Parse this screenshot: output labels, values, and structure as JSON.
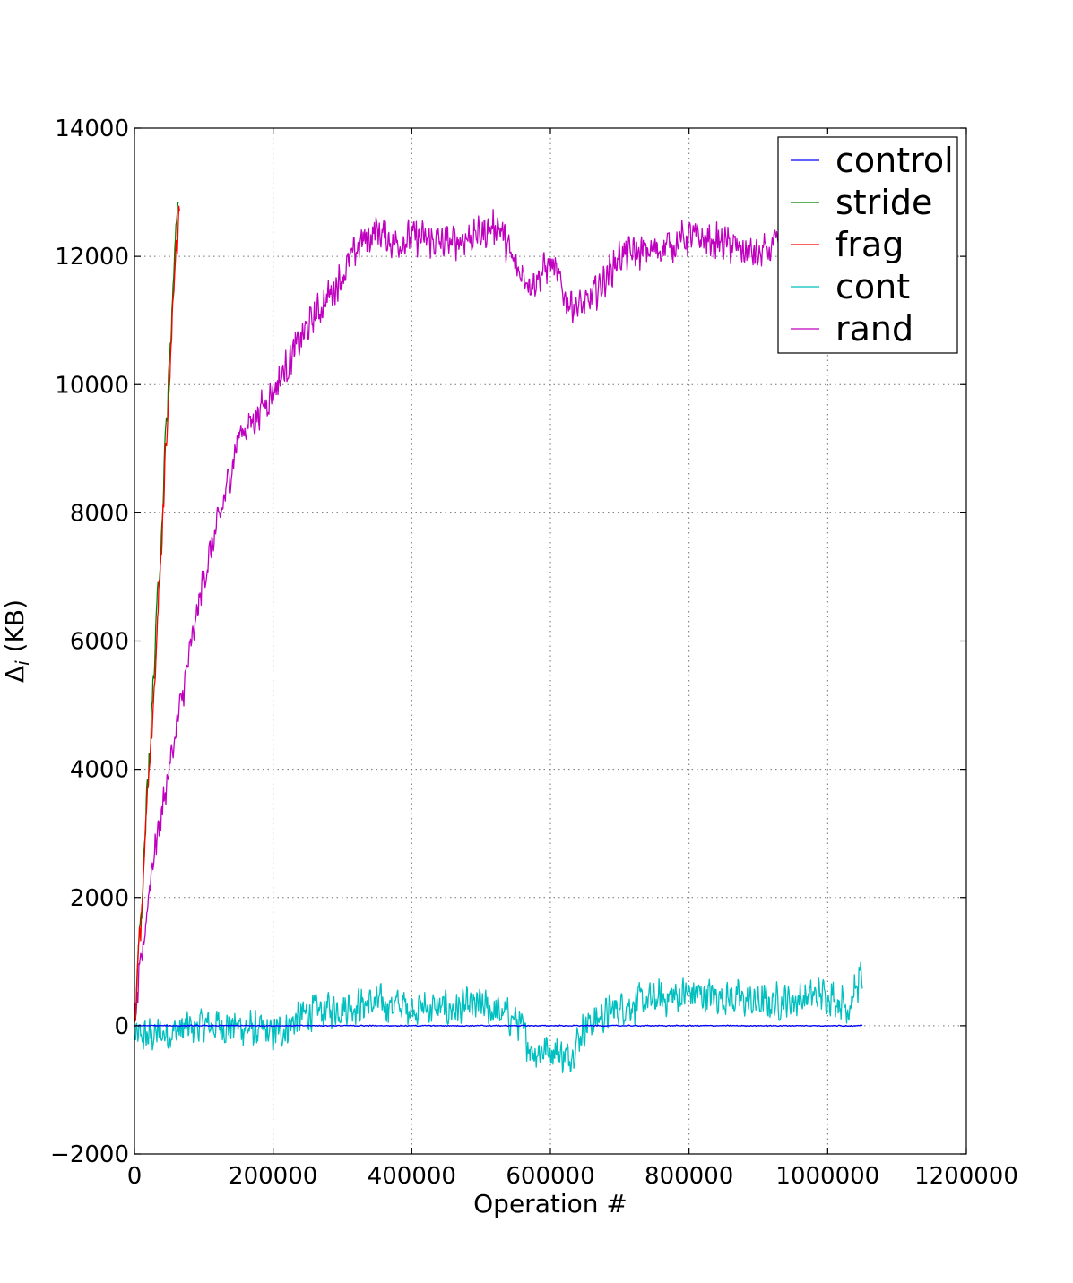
{
  "chart_data": {
    "type": "line",
    "title": "",
    "xlabel": "Operation #",
    "ylabel_base": "Δ",
    "ylabel_sub": "i",
    "ylabel_suffix": " (KB)",
    "xlim": [
      0,
      1200000
    ],
    "ylim": [
      -2000,
      14000
    ],
    "xticks": [
      0,
      200000,
      400000,
      600000,
      800000,
      1000000,
      1200000
    ],
    "xtick_labels": [
      "0",
      "200000",
      "400000",
      "600000",
      "800000",
      "1000000",
      "1200000"
    ],
    "yticks": [
      -2000,
      0,
      2000,
      4000,
      6000,
      8000,
      10000,
      12000,
      14000
    ],
    "ytick_labels": [
      "−2000",
      "0",
      "2000",
      "4000",
      "6000",
      "8000",
      "10000",
      "12000",
      "14000"
    ],
    "grid": true,
    "legend_position": "top-right",
    "series": [
      {
        "name": "control",
        "color": "#0000ff",
        "noise": 10,
        "x": [
          0,
          1050000
        ],
        "y": [
          0,
          0
        ]
      },
      {
        "name": "stride",
        "color": "#008000",
        "noise": 350,
        "x": [
          0,
          10000,
          20000,
          30000,
          40000,
          50000,
          60000,
          63000
        ],
        "y": [
          0,
          1900,
          3900,
          5900,
          8000,
          10200,
          12400,
          13000
        ]
      },
      {
        "name": "frag",
        "color": "#ff0000",
        "noise": 300,
        "x": [
          0,
          10000,
          20000,
          30000,
          40000,
          50000,
          60000,
          65000
        ],
        "y": [
          0,
          1800,
          3700,
          5600,
          7800,
          10000,
          12000,
          12800
        ]
      },
      {
        "name": "cont",
        "color": "#00bfbf",
        "noise": 340,
        "x": [
          0,
          50000,
          100000,
          150000,
          200000,
          250000,
          300000,
          350000,
          400000,
          450000,
          500000,
          550000,
          575000,
          600000,
          625000,
          650000,
          700000,
          750000,
          800000,
          850000,
          900000,
          950000,
          1000000,
          1030000,
          1050000
        ],
        "y": [
          -200,
          -100,
          0,
          0,
          -150,
          200,
          300,
          350,
          300,
          250,
          300,
          100,
          -400,
          -350,
          -500,
          0,
          300,
          400,
          500,
          450,
          350,
          400,
          500,
          300,
          800
        ]
      },
      {
        "name": "rand",
        "color": "#bf00bf",
        "noise": 330,
        "x": [
          0,
          25000,
          50000,
          75000,
          100000,
          125000,
          150000,
          175000,
          200000,
          225000,
          250000,
          275000,
          300000,
          325000,
          350000,
          375000,
          400000,
          450000,
          500000,
          525000,
          550000,
          575000,
          600000,
          625000,
          650000,
          675000,
          700000,
          750000,
          800000,
          850000,
          900000,
          950000,
          1000000,
          1050000
        ],
        "y": [
          0,
          2500,
          4000,
          5500,
          7000,
          8000,
          9200,
          9500,
          9900,
          10400,
          10900,
          11300,
          11700,
          12200,
          12400,
          12200,
          12300,
          12200,
          12350,
          12500,
          11800,
          11600,
          11900,
          11300,
          11200,
          11600,
          12000,
          12100,
          12300,
          12200,
          12000,
          12300,
          12400,
          12200
        ]
      }
    ]
  }
}
